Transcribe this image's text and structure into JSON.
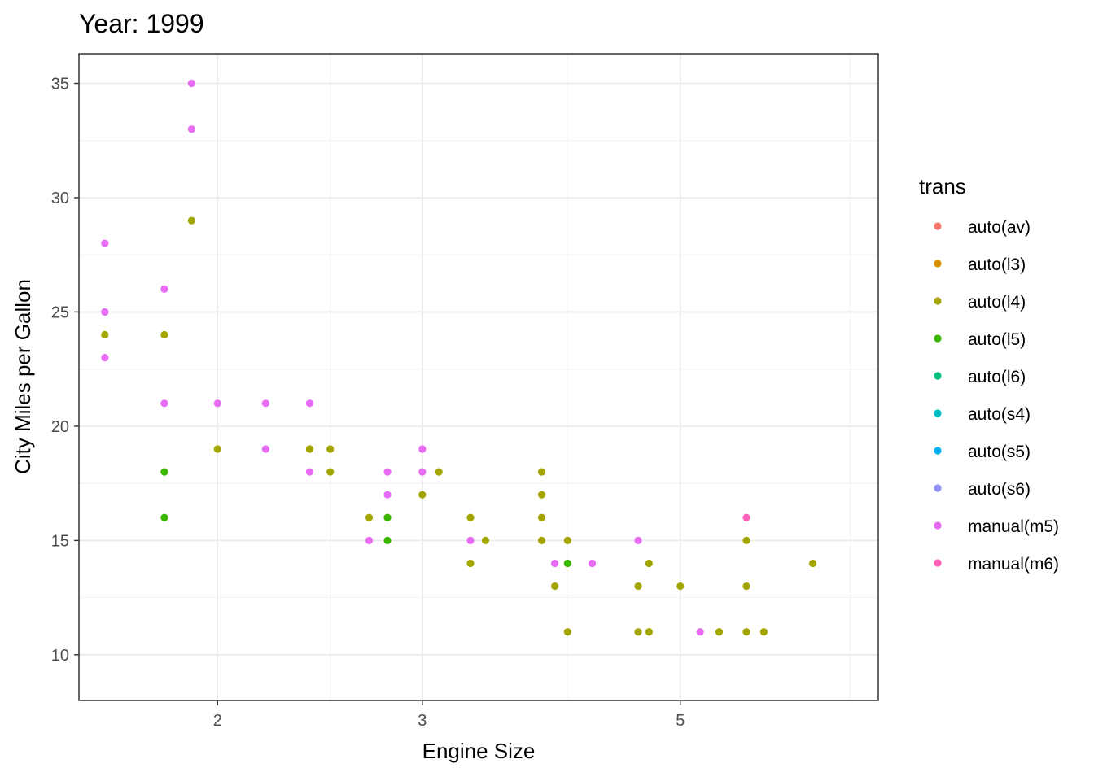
{
  "chart_data": {
    "type": "scatter",
    "title": "Year: 1999",
    "xlabel": "Engine Size",
    "ylabel": "City Miles per Gallon",
    "x_scale": "log",
    "xlim": [
      1.52,
      7.4
    ],
    "ylim": [
      8.0,
      36.3
    ],
    "x_ticks": [
      2,
      3,
      5
    ],
    "x_minor_ticks": [
      2.5,
      4,
      7
    ],
    "y_ticks": [
      10,
      15,
      20,
      25,
      30,
      35
    ],
    "grid": true,
    "legend": {
      "title": "trans",
      "position": "right",
      "entries": [
        {
          "label": "auto(av)",
          "color": "#F8766D"
        },
        {
          "label": "auto(l3)",
          "color": "#D89000"
        },
        {
          "label": "auto(l4)",
          "color": "#A3A500"
        },
        {
          "label": "auto(l5)",
          "color": "#39B600"
        },
        {
          "label": "auto(l6)",
          "color": "#00BF7D"
        },
        {
          "label": "auto(s4)",
          "color": "#00BFC4"
        },
        {
          "label": "auto(s5)",
          "color": "#00B0F6"
        },
        {
          "label": "auto(s6)",
          "color": "#9590FF"
        },
        {
          "label": "manual(m5)",
          "color": "#E76BF3"
        },
        {
          "label": "manual(m6)",
          "color": "#FF62BC"
        }
      ]
    },
    "series": [
      {
        "name": "auto(l4)",
        "points": [
          [
            1.6,
            24
          ],
          [
            1.8,
            24
          ],
          [
            1.9,
            29
          ],
          [
            2.0,
            19
          ],
          [
            2.4,
            19
          ],
          [
            2.5,
            19
          ],
          [
            2.5,
            18
          ],
          [
            2.4,
            19
          ],
          [
            2.7,
            16
          ],
          [
            2.8,
            16
          ],
          [
            3.0,
            17
          ],
          [
            3.1,
            18
          ],
          [
            3.3,
            16
          ],
          [
            3.3,
            14
          ],
          [
            3.4,
            15
          ],
          [
            3.8,
            18
          ],
          [
            3.8,
            17
          ],
          [
            3.8,
            16
          ],
          [
            3.8,
            15
          ],
          [
            3.9,
            13
          ],
          [
            4.0,
            15
          ],
          [
            4.0,
            11
          ],
          [
            4.6,
            13
          ],
          [
            4.6,
            11
          ],
          [
            4.7,
            14
          ],
          [
            4.7,
            11
          ],
          [
            5.0,
            13
          ],
          [
            5.4,
            11
          ],
          [
            5.7,
            15
          ],
          [
            5.7,
            13
          ],
          [
            5.7,
            11
          ],
          [
            5.9,
            11
          ],
          [
            6.5,
            14
          ]
        ]
      },
      {
        "name": "auto(l5)",
        "points": [
          [
            1.8,
            18
          ],
          [
            1.8,
            16
          ],
          [
            2.8,
            16
          ],
          [
            2.8,
            15
          ],
          [
            4.0,
            14
          ]
        ]
      },
      {
        "name": "manual(m5)",
        "points": [
          [
            1.6,
            28
          ],
          [
            1.6,
            25
          ],
          [
            1.6,
            23
          ],
          [
            1.8,
            26
          ],
          [
            1.8,
            21
          ],
          [
            1.9,
            35
          ],
          [
            1.9,
            33
          ],
          [
            2.0,
            21
          ],
          [
            2.2,
            21
          ],
          [
            2.2,
            19
          ],
          [
            2.4,
            21
          ],
          [
            2.4,
            18
          ],
          [
            2.7,
            15
          ],
          [
            2.8,
            18
          ],
          [
            2.8,
            17
          ],
          [
            3.0,
            19
          ],
          [
            3.0,
            18
          ],
          [
            3.3,
            15
          ],
          [
            3.9,
            14
          ],
          [
            4.2,
            14
          ],
          [
            4.6,
            15
          ],
          [
            5.2,
            11
          ]
        ]
      },
      {
        "name": "manual(m6)",
        "points": [
          [
            5.7,
            16
          ]
        ]
      }
    ]
  }
}
